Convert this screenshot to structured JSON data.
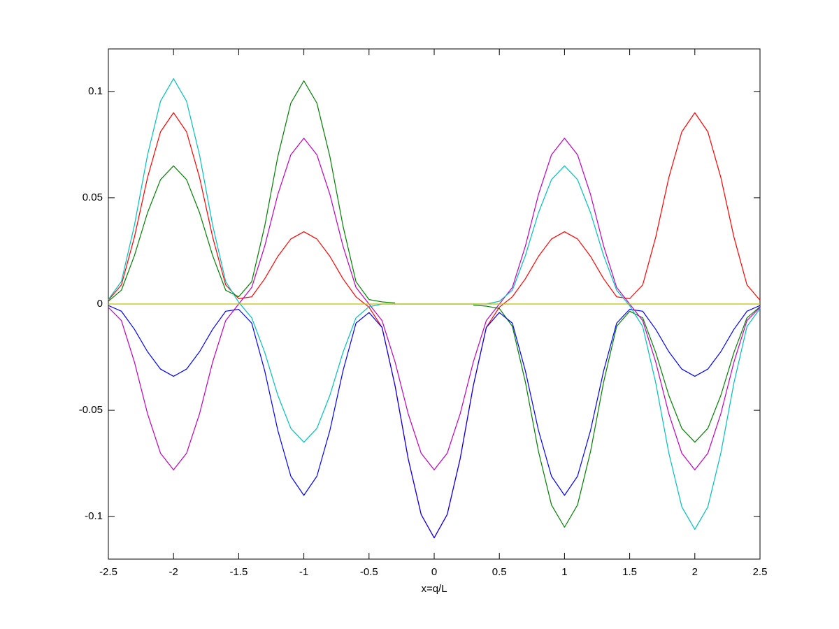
{
  "chart_data": {
    "type": "line",
    "xlabel": "x=q/L",
    "x": [
      -2.5,
      -2.4,
      -2.3,
      -2.2,
      -2.1,
      -2.0,
      -1.9,
      -1.8,
      -1.7,
      -1.6,
      -1.5,
      -1.4,
      -1.3,
      -1.2,
      -1.1,
      -1.0,
      -0.9,
      -0.8,
      -0.7,
      -0.6,
      -0.5,
      -0.4,
      -0.3,
      -0.2,
      -0.1,
      0,
      0.1,
      0.2,
      0.3,
      0.4,
      0.5,
      0.6,
      0.7,
      0.8,
      0.9,
      1.0,
      1.1,
      1.2,
      1.3,
      1.4,
      1.5,
      1.6,
      1.7,
      1.8,
      1.9,
      2.0,
      2.1,
      2.2,
      2.3,
      2.4,
      2.5
    ],
    "series": [
      {
        "color": "#ff0000",
        "values": [
          0.0018,
          0.009,
          0.0315,
          0.0594,
          0.081,
          0.09,
          0.081,
          0.0594,
          0.0315,
          0.009,
          0.0025,
          0.0034,
          0.0119,
          0.0224,
          0.0306,
          0.034,
          0.0306,
          0.0224,
          0.0119,
          0.0034,
          -0.0015,
          -0.011,
          -0.0385,
          -0.0726,
          -0.099,
          -0.11,
          -0.099,
          -0.0726,
          -0.0385,
          -0.011,
          -0.0015,
          0.0034,
          0.0119,
          0.0224,
          0.0306,
          0.034,
          0.0306,
          0.0224,
          0.0119,
          0.0034,
          0.0025,
          0.009,
          0.0315,
          0.0594,
          0.081,
          0.09,
          0.081,
          0.0594,
          0.0315,
          0.009,
          0.0018
        ]
      },
      {
        "color": "#008000",
        "values": [
          0.0013,
          0.0065,
          0.0228,
          0.0429,
          0.0585,
          0.065,
          0.0585,
          0.0429,
          0.0228,
          0.0065,
          0.0034,
          0.0105,
          0.0368,
          0.0693,
          0.0945,
          0.105,
          0.0945,
          0.0693,
          0.0368,
          0.0105,
          0.0021,
          0.001,
          0.0005,
          null,
          null,
          null,
          null,
          null,
          -0.0005,
          -0.001,
          -0.0021,
          -0.0105,
          -0.0368,
          -0.0693,
          -0.0945,
          -0.105,
          -0.0945,
          -0.0693,
          -0.0368,
          -0.0105,
          -0.0034,
          -0.0065,
          -0.0228,
          -0.0429,
          -0.0585,
          -0.065,
          -0.0585,
          -0.0429,
          -0.0228,
          -0.0065,
          -0.0013
        ]
      },
      {
        "color": "#0000ff",
        "values": [
          -0.0007,
          -0.0034,
          -0.0119,
          -0.0224,
          -0.0306,
          -0.034,
          -0.0306,
          -0.0224,
          -0.0119,
          -0.0034,
          -0.0025,
          -0.009,
          -0.0315,
          -0.0594,
          -0.081,
          -0.09,
          -0.081,
          -0.0594,
          -0.0315,
          -0.009,
          -0.004,
          -0.011,
          -0.0385,
          -0.0726,
          -0.099,
          -0.11,
          -0.099,
          -0.0726,
          -0.0385,
          -0.011,
          -0.004,
          -0.009,
          -0.0315,
          -0.0594,
          -0.081,
          -0.09,
          -0.081,
          -0.0594,
          -0.0315,
          -0.009,
          -0.0025,
          -0.0034,
          -0.0119,
          -0.0224,
          -0.0306,
          -0.034,
          -0.0306,
          -0.0224,
          -0.0119,
          -0.0034,
          -0.0007
        ]
      },
      {
        "color": "#bf00bf",
        "values": [
          -0.0016,
          -0.0078,
          -0.0273,
          -0.0515,
          -0.0702,
          -0.078,
          -0.0702,
          -0.0515,
          -0.0273,
          -0.0078,
          0,
          0.0078,
          0.0273,
          0.0515,
          0.0702,
          0.078,
          0.0702,
          0.0515,
          0.0273,
          0.0078,
          0,
          -0.0078,
          -0.0273,
          -0.0515,
          -0.0702,
          -0.078,
          -0.0702,
          -0.0515,
          -0.0273,
          -0.0078,
          0,
          0.0078,
          0.0273,
          0.0515,
          0.0702,
          0.078,
          0.0702,
          0.0515,
          0.0273,
          0.0078,
          0,
          -0.0078,
          -0.0273,
          -0.0515,
          -0.0702,
          -0.078,
          -0.0702,
          -0.0515,
          -0.0273,
          -0.0078,
          -0.0016
        ]
      },
      {
        "color": "#00bfbf",
        "values": [
          0.0021,
          0.0106,
          0.0371,
          0.07,
          0.0954,
          0.106,
          0.0954,
          0.07,
          0.0371,
          0.0106,
          0.0008,
          -0.0065,
          -0.0228,
          -0.0429,
          -0.0585,
          -0.065,
          -0.0585,
          -0.0429,
          -0.0228,
          -0.0065,
          -0.0013,
          0,
          0,
          0,
          0,
          0,
          0,
          0,
          0,
          0,
          0.0013,
          0.0065,
          0.0228,
          0.0429,
          0.0585,
          0.065,
          0.0585,
          0.0429,
          0.0228,
          0.0065,
          -0.0008,
          -0.0106,
          -0.0371,
          -0.07,
          -0.0954,
          -0.106,
          -0.0954,
          -0.07,
          -0.0371,
          -0.0106,
          -0.0021
        ]
      },
      {
        "color": "#bfbf00",
        "values": [
          0,
          0,
          0,
          0,
          0,
          0,
          0,
          0,
          0,
          0,
          0,
          0,
          0,
          0,
          0,
          0,
          0,
          0,
          0,
          0,
          0,
          0,
          0,
          0,
          0,
          0,
          0,
          0,
          0,
          0,
          0,
          0,
          0,
          0,
          0,
          0,
          0,
          0,
          0,
          0,
          0,
          0,
          0,
          0,
          0,
          0,
          0,
          0,
          0,
          0,
          0
        ]
      }
    ],
    "xlim": [
      -2.5,
      2.5
    ],
    "xticks": [
      -2.5,
      -2,
      -1.5,
      -1,
      -0.5,
      0,
      0.5,
      1,
      1.5,
      2,
      2.5
    ],
    "ylim": [
      -0.12,
      0.12
    ],
    "yticks": [
      -0.1,
      -0.05,
      0,
      0.05,
      0.1
    ],
    "grid": false
  }
}
